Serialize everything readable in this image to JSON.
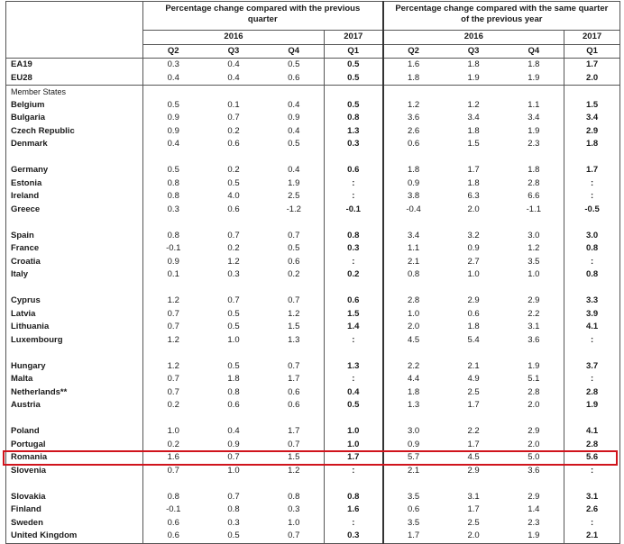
{
  "header": {
    "qoq_title": "Percentage change compared with the previous quarter",
    "yoy_title": "Percentage change compared with the same quarter of the previous year",
    "year_2016": "2016",
    "year_2017": "2017",
    "quarters": [
      "Q2",
      "Q3",
      "Q4",
      "Q1"
    ]
  },
  "aggregates": [
    {
      "name": "EA19",
      "qoq": [
        "0.3",
        "0.4",
        "0.5",
        "0.5"
      ],
      "yoy": [
        "1.6",
        "1.8",
        "1.8",
        "1.7"
      ]
    },
    {
      "name": "EU28",
      "qoq": [
        "0.4",
        "0.4",
        "0.6",
        "0.5"
      ],
      "yoy": [
        "1.8",
        "1.9",
        "1.9",
        "2.0"
      ]
    }
  ],
  "member_states_label": "Member States",
  "groups": [
    [
      {
        "name": "Belgium",
        "qoq": [
          "0.5",
          "0.1",
          "0.4",
          "0.5"
        ],
        "yoy": [
          "1.2",
          "1.2",
          "1.1",
          "1.5"
        ]
      },
      {
        "name": "Bulgaria",
        "qoq": [
          "0.9",
          "0.7",
          "0.9",
          "0.8"
        ],
        "yoy": [
          "3.6",
          "3.4",
          "3.4",
          "3.4"
        ]
      },
      {
        "name": "Czech Republic",
        "qoq": [
          "0.9",
          "0.2",
          "0.4",
          "1.3"
        ],
        "yoy": [
          "2.6",
          "1.8",
          "1.9",
          "2.9"
        ]
      },
      {
        "name": "Denmark",
        "qoq": [
          "0.4",
          "0.6",
          "0.5",
          "0.3"
        ],
        "yoy": [
          "0.6",
          "1.5",
          "2.3",
          "1.8"
        ]
      }
    ],
    [
      {
        "name": "Germany",
        "qoq": [
          "0.5",
          "0.2",
          "0.4",
          "0.6"
        ],
        "yoy": [
          "1.8",
          "1.7",
          "1.8",
          "1.7"
        ]
      },
      {
        "name": "Estonia",
        "qoq": [
          "0.8",
          "0.5",
          "1.9",
          ":"
        ],
        "yoy": [
          "0.9",
          "1.8",
          "2.8",
          ":"
        ]
      },
      {
        "name": "Ireland",
        "qoq": [
          "0.8",
          "4.0",
          "2.5",
          ":"
        ],
        "yoy": [
          "3.8",
          "6.3",
          "6.6",
          ":"
        ]
      },
      {
        "name": "Greece",
        "qoq": [
          "0.3",
          "0.6",
          "-1.2",
          "-0.1"
        ],
        "yoy": [
          "-0.4",
          "2.0",
          "-1.1",
          "-0.5"
        ]
      }
    ],
    [
      {
        "name": "Spain",
        "qoq": [
          "0.8",
          "0.7",
          "0.7",
          "0.8"
        ],
        "yoy": [
          "3.4",
          "3.2",
          "3.0",
          "3.0"
        ]
      },
      {
        "name": "France",
        "qoq": [
          "-0.1",
          "0.2",
          "0.5",
          "0.3"
        ],
        "yoy": [
          "1.1",
          "0.9",
          "1.2",
          "0.8"
        ]
      },
      {
        "name": "Croatia",
        "qoq": [
          "0.9",
          "1.2",
          "0.6",
          ":"
        ],
        "yoy": [
          "2.1",
          "2.7",
          "3.5",
          ":"
        ]
      },
      {
        "name": "Italy",
        "qoq": [
          "0.1",
          "0.3",
          "0.2",
          "0.2"
        ],
        "yoy": [
          "0.8",
          "1.0",
          "1.0",
          "0.8"
        ]
      }
    ],
    [
      {
        "name": "Cyprus",
        "qoq": [
          "1.2",
          "0.7",
          "0.7",
          "0.6"
        ],
        "yoy": [
          "2.8",
          "2.9",
          "2.9",
          "3.3"
        ]
      },
      {
        "name": "Latvia",
        "qoq": [
          "0.7",
          "0.5",
          "1.2",
          "1.5"
        ],
        "yoy": [
          "1.0",
          "0.6",
          "2.2",
          "3.9"
        ]
      },
      {
        "name": "Lithuania",
        "qoq": [
          "0.7",
          "0.5",
          "1.5",
          "1.4"
        ],
        "yoy": [
          "2.0",
          "1.8",
          "3.1",
          "4.1"
        ]
      },
      {
        "name": "Luxembourg",
        "qoq": [
          "1.2",
          "1.0",
          "1.3",
          ":"
        ],
        "yoy": [
          "4.5",
          "5.4",
          "3.6",
          ":"
        ]
      }
    ],
    [
      {
        "name": "Hungary",
        "qoq": [
          "1.2",
          "0.5",
          "0.7",
          "1.3"
        ],
        "yoy": [
          "2.2",
          "2.1",
          "1.9",
          "3.7"
        ]
      },
      {
        "name": "Malta",
        "qoq": [
          "0.7",
          "1.8",
          "1.7",
          ":"
        ],
        "yoy": [
          "4.4",
          "4.9",
          "5.1",
          ":"
        ]
      },
      {
        "name": "Netherlands**",
        "qoq": [
          "0.7",
          "0.8",
          "0.6",
          "0.4"
        ],
        "yoy": [
          "1.8",
          "2.5",
          "2.8",
          "2.8"
        ]
      },
      {
        "name": "Austria",
        "qoq": [
          "0.2",
          "0.6",
          "0.6",
          "0.5"
        ],
        "yoy": [
          "1.3",
          "1.7",
          "2.0",
          "1.9"
        ]
      }
    ],
    [
      {
        "name": "Poland",
        "qoq": [
          "1.0",
          "0.4",
          "1.7",
          "1.0"
        ],
        "yoy": [
          "3.0",
          "2.2",
          "2.9",
          "4.1"
        ]
      },
      {
        "name": "Portugal",
        "qoq": [
          "0.2",
          "0.9",
          "0.7",
          "1.0"
        ],
        "yoy": [
          "0.9",
          "1.7",
          "2.0",
          "2.8"
        ]
      },
      {
        "name": "Romania",
        "qoq": [
          "1.6",
          "0.7",
          "1.5",
          "1.7"
        ],
        "yoy": [
          "5.7",
          "4.5",
          "5.0",
          "5.6"
        ]
      },
      {
        "name": "Slovenia",
        "qoq": [
          "0.7",
          "1.0",
          "1.2",
          ":"
        ],
        "yoy": [
          "2.1",
          "2.9",
          "3.6",
          ":"
        ]
      }
    ],
    [
      {
        "name": "Slovakia",
        "qoq": [
          "0.8",
          "0.7",
          "0.8",
          "0.8"
        ],
        "yoy": [
          "3.5",
          "3.1",
          "2.9",
          "3.1"
        ]
      },
      {
        "name": "Finland",
        "qoq": [
          "-0.1",
          "0.8",
          "0.3",
          "1.6"
        ],
        "yoy": [
          "0.6",
          "1.7",
          "1.4",
          "2.6"
        ]
      },
      {
        "name": "Sweden",
        "qoq": [
          "0.6",
          "0.3",
          "1.0",
          ":"
        ],
        "yoy": [
          "3.5",
          "2.5",
          "2.3",
          ":"
        ]
      },
      {
        "name": "United Kingdom",
        "qoq": [
          "0.6",
          "0.5",
          "0.7",
          "0.3"
        ],
        "yoy": [
          "1.7",
          "2.0",
          "1.9",
          "2.1"
        ]
      }
    ]
  ],
  "highlight": {
    "row": "Romania",
    "color": "#d0141c"
  }
}
